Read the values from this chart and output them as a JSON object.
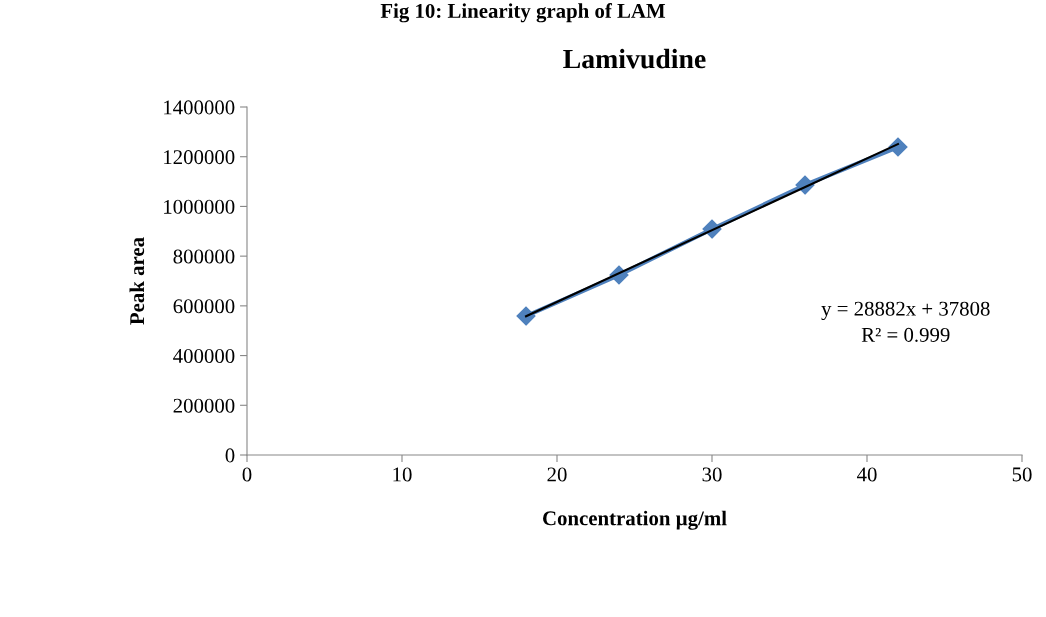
{
  "chart_data": {
    "type": "line",
    "title": "Lamivudine",
    "xlabel": "Concentration µg/ml",
    "ylabel": "Peak area",
    "x": [
      18,
      24,
      30,
      36,
      42
    ],
    "series": [
      {
        "color": "#4f81bd",
        "values": [
          559000,
          724000,
          909000,
          1086000,
          1239000
        ],
        "marker": "diamond"
      },
      {
        "color": "#000000",
        "x": [
          18,
          42
        ],
        "values": [
          558000,
          1251000
        ],
        "marker": "none"
      }
    ],
    "xlim": [
      0,
      50
    ],
    "xticks": [
      0,
      10,
      20,
      30,
      40,
      50
    ],
    "ylim": [
      0,
      1400000
    ],
    "yticks": [
      0,
      200000,
      400000,
      600000,
      800000,
      1000000,
      1200000,
      1400000
    ],
    "grid": false,
    "annotations": [
      "Fig 10: Linearity graph of LAM",
      "y = 28882x + 37808",
      "R² = 0.999"
    ]
  }
}
